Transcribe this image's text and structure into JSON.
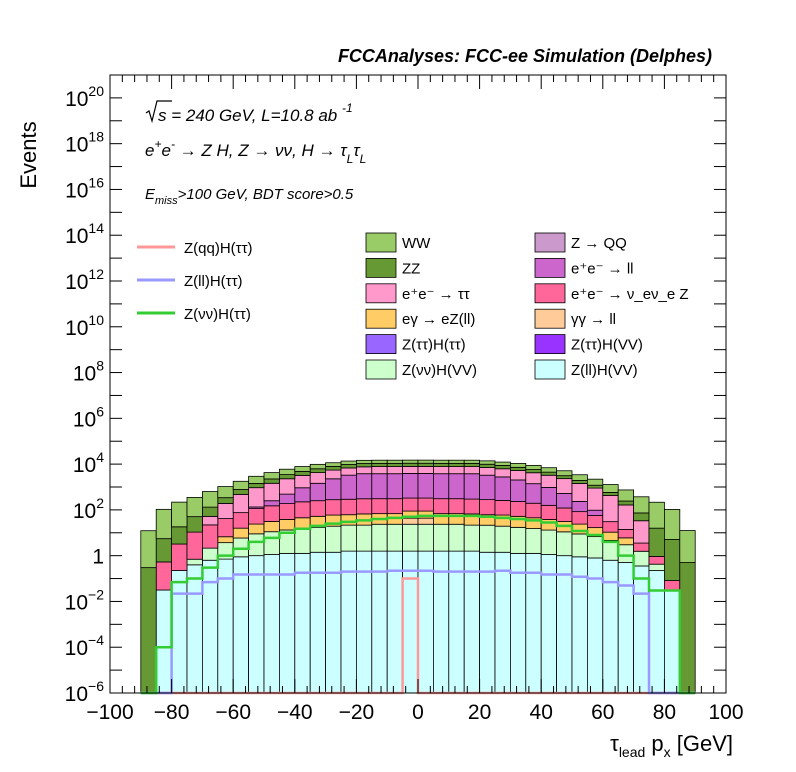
{
  "header": "FCCAnalyses: FCC-ee Simulation (Delphes)",
  "annotations": {
    "energy": "√s = 240 GeV, L=10.8 ab⁻¹",
    "process": "e⁺e⁻ → Z H, Z → νν, H → τ_L τ_L",
    "selection": "E_miss>100 GeV, BDT score>0.5"
  },
  "chart_data": {
    "type": "bar",
    "subtype": "stacked-histogram-with-signal-lines",
    "xlabel": "τ_lead p_x [GeV]",
    "ylabel": "Events",
    "xlim": [
      -100,
      100
    ],
    "ylim": [
      1e-06,
      1e+21
    ],
    "yscale": "log",
    "x_ticks": [
      -100,
      -80,
      -60,
      -40,
      -20,
      0,
      20,
      40,
      60,
      80,
      100
    ],
    "x_tick_labels": [
      "−100",
      "−80",
      "−60",
      "−40",
      "−20",
      "0",
      "20",
      "40",
      "60",
      "80",
      "100"
    ],
    "y_tick_labels": [
      {
        "value": 1e-06,
        "base": "10",
        "exp": "−6"
      },
      {
        "value": 0.0001,
        "base": "10",
        "exp": "−4"
      },
      {
        "value": 0.01,
        "base": "10",
        "exp": "−2"
      },
      {
        "value": 1,
        "base": "1",
        "exp": ""
      },
      {
        "value": 100.0,
        "base": "10",
        "exp": "2"
      },
      {
        "value": 10000.0,
        "base": "10",
        "exp": "4"
      },
      {
        "value": 1000000.0,
        "base": "10",
        "exp": "6"
      },
      {
        "value": 100000000.0,
        "base": "10",
        "exp": "8"
      },
      {
        "value": 10000000000.0,
        "base": "10",
        "exp": "10"
      },
      {
        "value": 1000000000000.0,
        "base": "10",
        "exp": "12"
      },
      {
        "value": 100000000000000.0,
        "base": "10",
        "exp": "14"
      },
      {
        "value": 1e+16,
        "base": "10",
        "exp": "16"
      },
      {
        "value": 1e+18,
        "base": "10",
        "exp": "18"
      },
      {
        "value": 1e+20,
        "base": "10",
        "exp": "20"
      }
    ],
    "grid": false,
    "legend_placement": "top-right",
    "bin_edges": [
      -90,
      -85,
      -80,
      -75,
      -70,
      -65,
      -60,
      -55,
      -50,
      -45,
      -40,
      -35,
      -30,
      -25,
      -20,
      -15,
      -10,
      -5,
      0,
      5,
      10,
      15,
      20,
      25,
      30,
      35,
      40,
      45,
      50,
      55,
      60,
      65,
      70,
      75,
      80,
      85,
      90
    ],
    "stack": [
      {
        "name": "Z(ll)H(VV)",
        "color": "#ccffff",
        "values": [
          0,
          0.0316,
          0.224,
          0.398,
          0.631,
          0.708,
          0.891,
          1.0,
          1.12,
          1.26,
          1.26,
          1.41,
          1.41,
          1.58,
          1.58,
          1.58,
          1.58,
          1.58,
          1.58,
          1.58,
          1.58,
          1.58,
          1.41,
          1.41,
          1.26,
          1.26,
          1.12,
          1.0,
          0.891,
          0.794,
          0.631,
          0.501,
          0.355,
          0.224,
          0.0316,
          0
        ]
      },
      {
        "name": "Z(νν)H(VV)",
        "color": "#ccffcc",
        "values": [
          0,
          0,
          0,
          0.3,
          1.5,
          3.0,
          5.0,
          8.0,
          10,
          12,
          14,
          16,
          18,
          20,
          20,
          22,
          22,
          22,
          22,
          22,
          22,
          20,
          20,
          18,
          16,
          14,
          12,
          10,
          8.0,
          6.0,
          4.0,
          2.5,
          1.2,
          0.2,
          0,
          0
        ]
      },
      {
        "name": "Z(ττ)H(VV)",
        "color": "#9933ff",
        "values": [
          0,
          0,
          0,
          0,
          0,
          0,
          0,
          0,
          0.0001,
          0.001,
          0.001,
          0.002,
          0.001,
          0.002,
          0.002,
          0.002,
          0.001,
          0.002,
          0.002,
          0.002,
          0.002,
          0.001,
          0.002,
          0.002,
          0.001,
          0.002,
          0.002,
          0.001,
          0.001,
          0.0001,
          0,
          0,
          0,
          0,
          0,
          0
        ]
      },
      {
        "name": "Z(ττ)H(ττ)",
        "color": "#9966ff",
        "values": [
          0,
          0,
          0,
          0,
          0,
          0,
          0,
          0,
          0.001,
          0.001,
          0.002,
          0.002,
          0.002,
          0.002,
          0.002,
          0.002,
          0.002,
          0.002,
          0.002,
          0.002,
          0.002,
          0.002,
          0.002,
          0.002,
          0.002,
          0.002,
          0.002,
          0.001,
          0.001,
          0,
          0,
          0,
          0,
          0,
          0,
          0
        ]
      },
      {
        "name": "γγ → ll",
        "color": "#ffcc99",
        "values": [
          0,
          0,
          0,
          0,
          0,
          0,
          0,
          0,
          0,
          0,
          0,
          0,
          0,
          0,
          0,
          0,
          0,
          20,
          20,
          0,
          0,
          0,
          0,
          0,
          0,
          0,
          0,
          0,
          0,
          0,
          0,
          0,
          0,
          0,
          0,
          0
        ]
      },
      {
        "name": "eγ → eZ(ll)",
        "color": "#ffcc66",
        "values": [
          0,
          0,
          0,
          0,
          0,
          3,
          10,
          15,
          20,
          25,
          30,
          35,
          40,
          40,
          45,
          45,
          45,
          45,
          45,
          45,
          45,
          45,
          40,
          40,
          35,
          30,
          25,
          20,
          15,
          10,
          6,
          3,
          0,
          0,
          0,
          0
        ]
      },
      {
        "name": "e⁺e⁻ → ν_eν_e Z",
        "color": "#ff6699",
        "values": [
          0,
          0.5,
          3,
          10,
          20,
          35,
          60,
          90,
          120,
          150,
          180,
          200,
          220,
          230,
          240,
          240,
          240,
          240,
          240,
          240,
          240,
          230,
          220,
          200,
          180,
          150,
          120,
          90,
          60,
          40,
          20,
          8,
          2,
          0.5,
          0.05,
          0
        ]
      },
      {
        "name": "e⁺e⁻ → ll",
        "color": "#cc66cc",
        "values": [
          0,
          0,
          0,
          0,
          0,
          0,
          0,
          20,
          100,
          300,
          700,
          1200,
          2000,
          3000,
          3500,
          3500,
          3500,
          3600,
          3600,
          3500,
          3500,
          3500,
          3000,
          2500,
          1800,
          1200,
          800,
          400,
          150,
          40,
          0,
          0,
          0,
          0,
          0,
          0
        ]
      },
      {
        "name": "Z → QQ",
        "color": "#cc99cc",
        "values": [
          0,
          0,
          0,
          0,
          0,
          0,
          0,
          0,
          0,
          0,
          0,
          0,
          0,
          0,
          0,
          0,
          0,
          0,
          0,
          0,
          0,
          0,
          0,
          0,
          0,
          0,
          0,
          0,
          0,
          0,
          0,
          0,
          0,
          0,
          0,
          0
        ]
      },
      {
        "name": "e⁺e⁻ → ττ",
        "color": "#ff99cc",
        "values": [
          0,
          0,
          0,
          0,
          30,
          150,
          400,
          800,
          1200,
          1800,
          2300,
          2800,
          3200,
          3500,
          3800,
          4000,
          4000,
          4000,
          4000,
          4000,
          4000,
          4000,
          3800,
          3500,
          3200,
          2800,
          2300,
          1800,
          1200,
          800,
          400,
          150,
          30,
          0,
          0,
          0
        ]
      },
      {
        "name": "ZZ",
        "color": "#669933",
        "values": [
          0.3,
          5,
          15,
          40,
          80,
          150,
          300,
          500,
          800,
          1200,
          1600,
          2000,
          2500,
          2800,
          3000,
          3000,
          3000,
          3000,
          3000,
          3000,
          3000,
          3000,
          2800,
          2500,
          2000,
          1600,
          1200,
          800,
          500,
          300,
          150,
          80,
          40,
          15,
          5,
          0.5
        ]
      },
      {
        "name": "WW",
        "color": "#99cc66",
        "values": [
          12,
          100,
          200,
          300,
          500,
          700,
          1000,
          1500,
          2000,
          2500,
          3000,
          3500,
          3500,
          4000,
          4000,
          4000,
          4000,
          4000,
          4000,
          4000,
          4000,
          4000,
          4000,
          3500,
          3500,
          3000,
          2500,
          2000,
          1500,
          1000,
          700,
          500,
          300,
          200,
          100,
          12
        ]
      }
    ],
    "signals": [
      {
        "name": "Z(qq)H(ττ)",
        "color": "#ff9999",
        "values": [
          0,
          0,
          0,
          0,
          0,
          0,
          0,
          0,
          0,
          0,
          0,
          0,
          0,
          0,
          0,
          0,
          0,
          0.1,
          0,
          0,
          0,
          0,
          0,
          0,
          0,
          0,
          0,
          0,
          0,
          0,
          0,
          0,
          0,
          0,
          0,
          0
        ]
      },
      {
        "name": "Z(ll)H(ττ)",
        "color": "#9999ff",
        "values": [
          0,
          0,
          0.022,
          0.022,
          0.07,
          0.1,
          0.15,
          0.15,
          0.15,
          0.15,
          0.18,
          0.18,
          0.18,
          0.2,
          0.2,
          0.2,
          0.22,
          0.22,
          0.22,
          0.2,
          0.2,
          0.2,
          0.2,
          0.22,
          0.18,
          0.18,
          0.15,
          0.15,
          0.12,
          0.1,
          0.07,
          0.05,
          0.022,
          0,
          0,
          0
        ]
      },
      {
        "name": "Z(νν)H(ττ)",
        "color": "#33cc33",
        "values": [
          0,
          0.0001,
          0.07,
          0.1,
          0.3,
          1.0,
          2.0,
          4.0,
          6.0,
          10,
          15,
          20,
          25,
          30,
          35,
          40,
          45,
          50,
          55,
          55,
          55,
          55,
          50,
          45,
          40,
          35,
          28,
          20,
          12,
          8,
          4,
          1.0,
          0.1,
          0.03,
          0.03,
          0
        ]
      }
    ],
    "legend_left": [
      "Z(qq)H(ττ)",
      "Z(ll)H(ττ)",
      "Z(νν)H(ττ)"
    ],
    "legend_col1": [
      "WW",
      "ZZ",
      "e⁺e⁻ → ττ",
      "eγ → eZ(ll)",
      "Z(ττ)H(ττ)",
      "Z(νν)H(VV)"
    ],
    "legend_col2": [
      "Z → QQ",
      "e⁺e⁻ → ll",
      "e⁺e⁻ → ν_eν_e Z",
      "γγ → ll",
      "Z(ττ)H(VV)",
      "Z(ll)H(VV)"
    ]
  }
}
